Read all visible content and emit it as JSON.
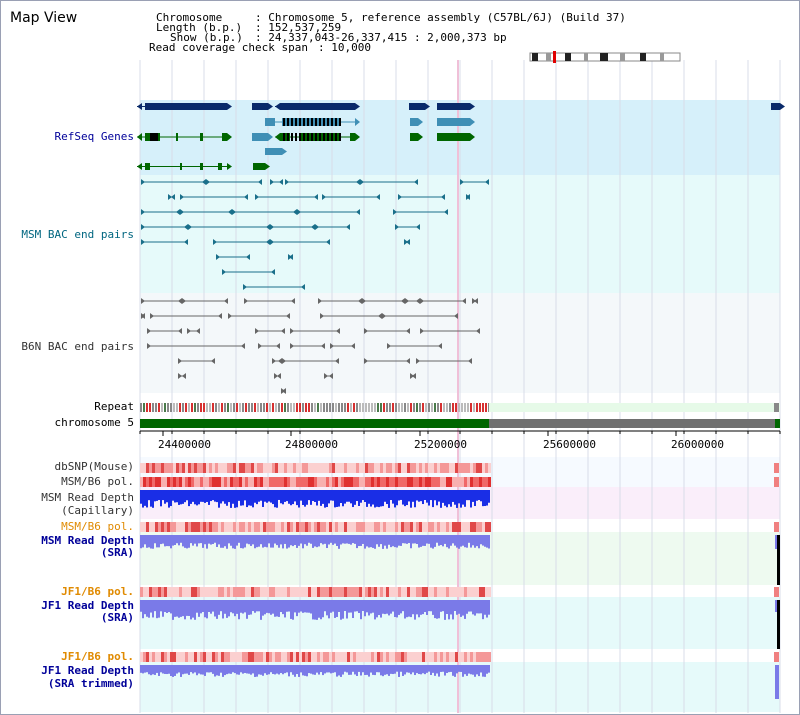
{
  "title": "Map View",
  "info": {
    "chromosome_key": "Chromosome",
    "chromosome_val": ": Chromosome 5, reference assembly (C57BL/6J) (Build 37)",
    "length_key": "Length (b.p.)",
    "length_val": ": 152,537,259",
    "show_key": "Show (b.p.)",
    "show_val": ": 24,337,043-26,337,415 : 2,000,373 bp",
    "read_key": "Read coverage check span",
    "read_val": ": 10,000"
  },
  "tracks": {
    "refseq": "RefSeq Genes",
    "msm_bac": "MSM BAC end pairs",
    "b6n_bac": "B6N BAC end pairs",
    "repeat": "Repeat",
    "chromosome": "chromosome 5",
    "dbsnp": "dbSNP(Mouse)",
    "msm_b6_pol_1": "MSM/B6 pol.",
    "msm_read_depth_cap_1": "MSM Read Depth",
    "msm_read_depth_cap_2": "(Capillary)",
    "msm_b6_pol_2": "MSM/B6 pol.",
    "msm_read_depth_sra_1": "MSM Read Depth",
    "msm_read_depth_sra_2": "(SRA)",
    "jf1_b6_pol_1": "JF1/B6 pol.",
    "jf1_read_depth_sra_1": "JF1 Read Depth",
    "jf1_read_depth_sra_2": "(SRA)",
    "jf1_b6_pol_2": "JF1/B6 pol.",
    "jf1_read_depth_trim_1": "JF1 Read Depth",
    "jf1_read_depth_trim_2": "(SRA trimmed)"
  },
  "axis": {
    "ticks": [
      "24400000",
      "24800000",
      "25200000",
      "25600000",
      "26000000"
    ]
  },
  "colors": {
    "refseq_bg": "#d6f0fa",
    "msm_bac_bg": "#e6fafa",
    "b6n_bac_bg": "#f4f8fa",
    "gene_dark": "#0a2a6a",
    "gene_mid": "#3f8fb5",
    "gene_green": "#006600",
    "msm_bac_line": "#1a6f8a",
    "b6n_bac_line": "#666666",
    "label_navy": "#000099",
    "label_teal": "#006680",
    "label_grey": "#333333",
    "label_orange": "#e08a00",
    "depth_blue": "#1a2ee6",
    "depth_light": "#7a7ae8",
    "snp_red": "#e04040"
  }
}
